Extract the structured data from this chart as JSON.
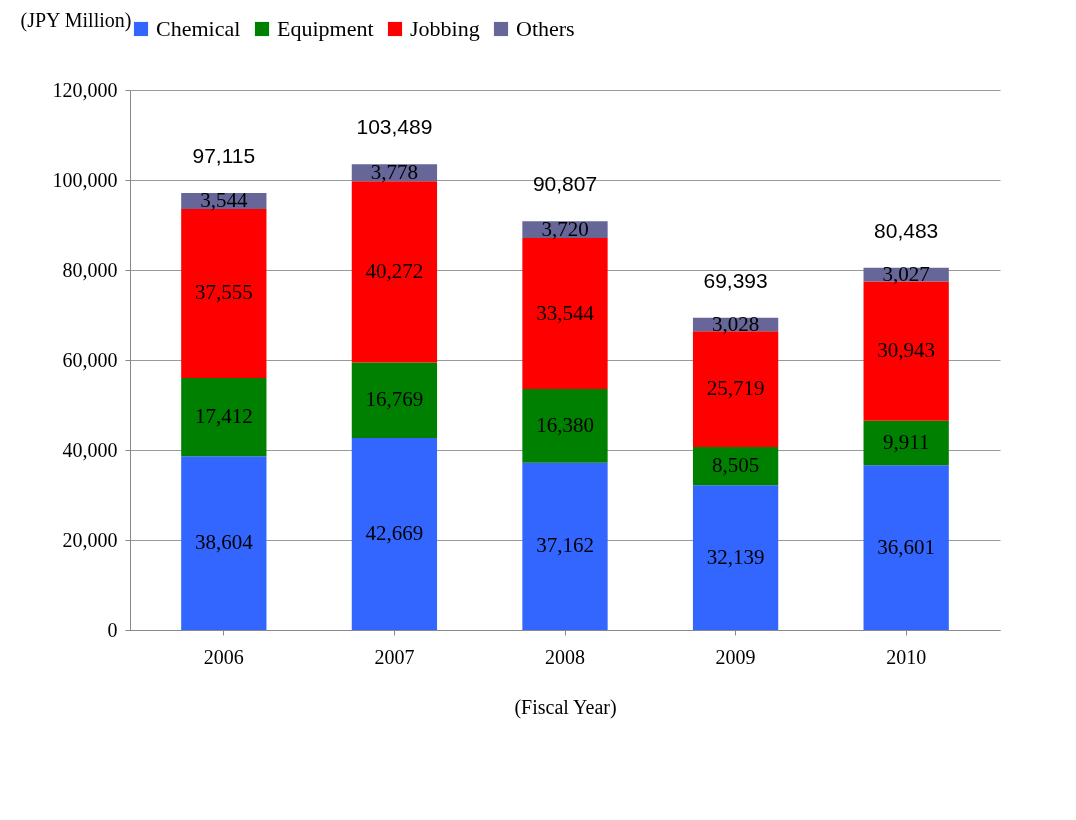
{
  "chart_data": {
    "type": "bar",
    "stacked": true,
    "xlabel": "(Fiscal Year)",
    "ylabel": "(JPY Million)",
    "categories": [
      "2006",
      "2007",
      "2008",
      "2009",
      "2010"
    ],
    "series": [
      {
        "name": "Chemical",
        "color": "#3366ff",
        "values": [
          38604,
          42669,
          37162,
          32139,
          36601
        ],
        "value_labels": [
          "38,604",
          "42,669",
          "37,162",
          "32,139",
          "36,601"
        ]
      },
      {
        "name": "Equipment",
        "color": "#008000",
        "values": [
          17412,
          16769,
          16380,
          8505,
          9911
        ],
        "value_labels": [
          "17,412",
          "16,769",
          "16,380",
          "8,505",
          "9,911"
        ]
      },
      {
        "name": "Jobbing",
        "color": "#ff0000",
        "values": [
          37555,
          40272,
          33544,
          25719,
          30943
        ],
        "value_labels": [
          "37,555",
          "40,272",
          "33,544",
          "25,719",
          "30,943"
        ]
      },
      {
        "name": "Others",
        "color": "#666699",
        "values": [
          3544,
          3778,
          3720,
          3028,
          3027
        ],
        "value_labels": [
          "3,544",
          "3,778",
          "3,720",
          "3,028",
          "3,027"
        ]
      }
    ],
    "totals": [
      "97,115",
      "103,489",
      "90,807",
      "69,393",
      "80,483"
    ],
    "ylim": [
      0,
      120000
    ],
    "yticks": [
      {
        "value": 0,
        "label": "0"
      },
      {
        "value": 20000,
        "label": "20,000"
      },
      {
        "value": 40000,
        "label": "40,000"
      },
      {
        "value": 60000,
        "label": "60,000"
      },
      {
        "value": 80000,
        "label": "80,000"
      },
      {
        "value": 100000,
        "label": "100,000"
      },
      {
        "value": 120000,
        "label": "120,000"
      }
    ],
    "grid": "y",
    "legend": "top"
  }
}
